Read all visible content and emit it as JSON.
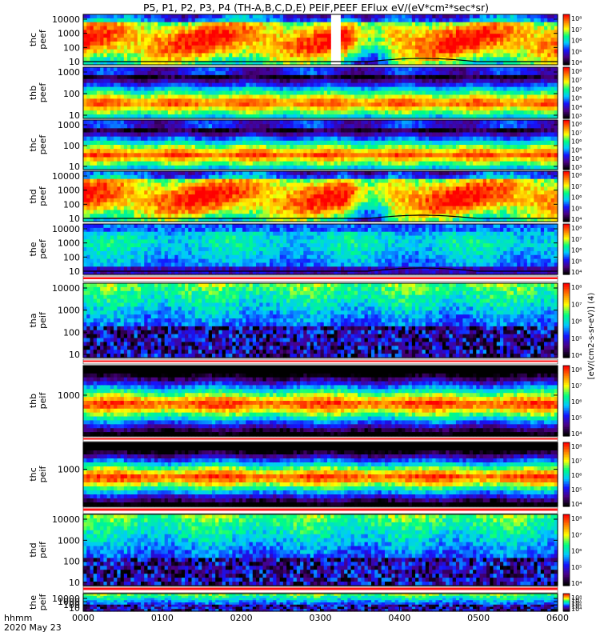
{
  "chart_data": {
    "type": "heatmap",
    "title": "P5, P1, P2, P3, P4 (TH-A,B,C,D,E) PEIF,PEEF EFlux eV/(eV*cm²*sec*sr)",
    "colorbar_label": "[eV/(cm2-s-sr-eV)] (4)",
    "time_axis": {
      "label_line1": "hhmm",
      "label_line2": "2020 May 23",
      "ticks": [
        "0000",
        "0100",
        "0200",
        "0300",
        "0400",
        "0500",
        "0600"
      ]
    },
    "colorscale": {
      "colors": [
        "#000000",
        "#4b0082",
        "#1414ff",
        "#00c8ff",
        "#00ff80",
        "#ffff00",
        "#ff8000",
        "#ff0000"
      ],
      "ticks_dense": [
        "10³",
        "10⁴",
        "10⁵",
        "10⁶",
        "10⁷",
        "10⁸"
      ],
      "ticks_peef": [
        "10⁴",
        "10⁵",
        "10⁶",
        "10⁷",
        "10⁸"
      ],
      "ticks_peif": [
        "10⁴",
        "10⁵",
        "10⁶",
        "10⁷",
        "10⁸"
      ]
    },
    "panels": [
      {
        "probe": "thc",
        "product": "peef",
        "ylabel_top": "thc",
        "ylabel_bottom": "peef",
        "yticks": [
          "10000",
          "1000",
          "100",
          "10"
        ],
        "style": "peef_hot"
      },
      {
        "probe": "thb",
        "product": "peef",
        "ylabel_top": "thb",
        "ylabel_bottom": "peef",
        "yticks": [
          "1000",
          "100",
          "10"
        ],
        "style": "peef_dense"
      },
      {
        "probe": "thc",
        "product": "peef",
        "ylabel_top": "thc",
        "ylabel_bottom": "peef",
        "yticks": [
          "1000",
          "100",
          "10"
        ],
        "style": "peef_dense"
      },
      {
        "probe": "thd",
        "product": "peef",
        "ylabel_top": "thd",
        "ylabel_bottom": "peef",
        "yticks": [
          "10000",
          "1000",
          "100",
          "10"
        ],
        "style": "peef_hot"
      },
      {
        "probe": "the",
        "product": "peef",
        "ylabel_top": "the",
        "ylabel_bottom": "peef",
        "yticks": [
          "10000",
          "1000",
          "100",
          "10"
        ],
        "style": "peef_green"
      },
      {
        "probe": "tha",
        "product": "peif",
        "ylabel_top": "tha",
        "ylabel_bottom": "peif",
        "yticks": [
          "10000",
          "1000",
          "100",
          "10"
        ],
        "style": "peif_low"
      },
      {
        "probe": "thb",
        "product": "peif",
        "ylabel_top": "thb",
        "ylabel_bottom": "peif",
        "yticks": [
          "1000"
        ],
        "style": "peif_band"
      },
      {
        "probe": "thc",
        "product": "peif",
        "ylabel_top": "thc",
        "ylabel_bottom": "peif",
        "yticks": [
          "1000"
        ],
        "style": "peif_band"
      },
      {
        "probe": "thd",
        "product": "peif",
        "ylabel_top": "thd",
        "ylabel_bottom": "peif",
        "yticks": [
          "10000",
          "1000",
          "100",
          "10"
        ],
        "style": "peif_low"
      },
      {
        "probe": "the",
        "product": "peif",
        "ylabel_top": "the",
        "ylabel_bottom": "peif",
        "yticks": [
          "10000",
          "1000",
          "100",
          "10"
        ],
        "style": "peif_low"
      }
    ]
  }
}
